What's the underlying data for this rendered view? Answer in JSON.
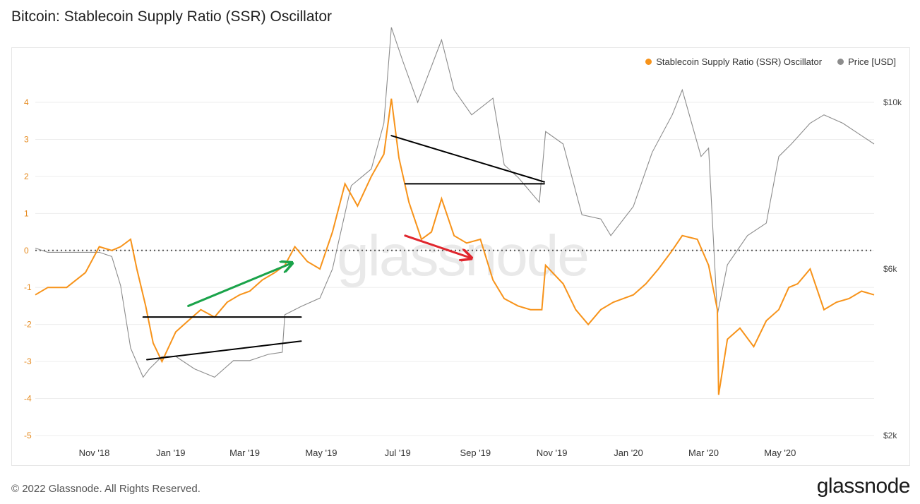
{
  "title": "Bitcoin: Stablecoin Supply Ratio (SSR) Oscillator",
  "footer": {
    "copyright": "© 2022 Glassnode. All Rights Reserved.",
    "logo_text": "glassnode"
  },
  "watermark": "glassnode",
  "colors": {
    "ssr": "#f7931a",
    "price": "#8c8c8c",
    "zero_line": "#555555",
    "annot_green": "#1aa34a",
    "annot_red": "#e0262e",
    "annot_black": "#000000"
  },
  "chart_data": {
    "type": "line",
    "legend": [
      "Stablecoin Supply Ratio (SSR) Oscillator",
      "Price [USD]"
    ],
    "legend_position": "top-right",
    "x_ticks": [
      "Nov '18",
      "Jan '19",
      "Mar '19",
      "May '19",
      "Jul '19",
      "Sep '19",
      "Nov '19",
      "Jan '20",
      "Mar '20",
      "May '20"
    ],
    "x_range": [
      "2018-09-15",
      "2020-07-15"
    ],
    "y_left_ticks": [
      "4",
      "3",
      "2",
      "1",
      "0",
      "-1",
      "-2",
      "-3",
      "-4",
      "-5"
    ],
    "y_left_range": [
      -5,
      4
    ],
    "y_right_ticks": [
      "$10k",
      "$6k",
      "$2k"
    ],
    "y_right_range": [
      2000,
      10000
    ],
    "grid": true,
    "series": [
      {
        "name": "Stablecoin Supply Ratio (SSR) Oscillator",
        "axis": "left",
        "x": [
          "2018-09-15",
          "2018-09-25",
          "2018-10-10",
          "2018-10-25",
          "2018-11-05",
          "2018-11-15",
          "2018-11-22",
          "2018-11-30",
          "2018-12-05",
          "2018-12-12",
          "2018-12-18",
          "2018-12-25",
          "2019-01-05",
          "2019-01-15",
          "2019-01-25",
          "2019-02-05",
          "2019-02-15",
          "2019-02-25",
          "2019-03-05",
          "2019-03-15",
          "2019-03-25",
          "2019-04-02",
          "2019-04-10",
          "2019-04-20",
          "2019-04-30",
          "2019-05-10",
          "2019-05-20",
          "2019-05-30",
          "2019-06-10",
          "2019-06-20",
          "2019-06-26",
          "2019-07-02",
          "2019-07-10",
          "2019-07-20",
          "2019-07-28",
          "2019-08-05",
          "2019-08-15",
          "2019-08-25",
          "2019-09-05",
          "2019-09-15",
          "2019-09-24",
          "2019-10-05",
          "2019-10-15",
          "2019-10-24",
          "2019-10-27",
          "2019-11-10",
          "2019-11-20",
          "2019-11-30",
          "2019-12-10",
          "2019-12-20",
          "2020-01-05",
          "2020-01-15",
          "2020-01-25",
          "2020-02-05",
          "2020-02-13",
          "2020-02-25",
          "2020-03-05",
          "2020-03-12",
          "2020-03-13",
          "2020-03-20",
          "2020-03-30",
          "2020-04-10",
          "2020-04-20",
          "2020-04-30",
          "2020-05-08",
          "2020-05-15",
          "2020-05-25",
          "2020-06-05",
          "2020-06-15",
          "2020-06-25",
          "2020-07-05",
          "2020-07-15"
        ],
        "values": [
          -1.2,
          -1.0,
          -1.0,
          -0.6,
          0.1,
          0.0,
          0.1,
          0.3,
          -0.5,
          -1.5,
          -2.5,
          -3.0,
          -2.2,
          -1.9,
          -1.6,
          -1.8,
          -1.4,
          -1.2,
          -1.1,
          -0.8,
          -0.6,
          -0.4,
          0.1,
          -0.3,
          -0.5,
          0.5,
          1.8,
          1.2,
          2.0,
          2.6,
          4.1,
          2.5,
          1.3,
          0.3,
          0.5,
          1.4,
          0.4,
          0.2,
          0.3,
          -0.8,
          -1.3,
          -1.5,
          -1.6,
          -1.6,
          -0.4,
          -0.9,
          -1.6,
          -2.0,
          -1.6,
          -1.4,
          -1.2,
          -0.9,
          -0.5,
          0.0,
          0.4,
          0.3,
          -0.4,
          -1.6,
          -3.9,
          -2.4,
          -2.1,
          -2.6,
          -1.9,
          -1.6,
          -1.0,
          -0.9,
          -0.5,
          -1.6,
          -1.4,
          -1.3,
          -1.1,
          -1.2
        ]
      },
      {
        "name": "Price [USD]",
        "axis": "right",
        "x": [
          "2018-09-15",
          "2018-09-25",
          "2018-10-10",
          "2018-10-25",
          "2018-11-05",
          "2018-11-15",
          "2018-11-22",
          "2018-11-30",
          "2018-12-10",
          "2018-12-15",
          "2018-12-25",
          "2019-01-05",
          "2019-01-20",
          "2019-02-05",
          "2019-02-20",
          "2019-03-05",
          "2019-03-20",
          "2019-03-31",
          "2019-04-02",
          "2019-04-15",
          "2019-04-30",
          "2019-05-10",
          "2019-05-25",
          "2019-06-10",
          "2019-06-20",
          "2019-06-26",
          "2019-07-05",
          "2019-07-17",
          "2019-08-05",
          "2019-08-15",
          "2019-08-29",
          "2019-09-15",
          "2019-09-24",
          "2019-10-05",
          "2019-10-22",
          "2019-10-27",
          "2019-11-10",
          "2019-11-25",
          "2019-12-10",
          "2019-12-18",
          "2020-01-05",
          "2020-01-20",
          "2020-02-05",
          "2020-02-13",
          "2020-02-28",
          "2020-03-05",
          "2020-03-12",
          "2020-03-20",
          "2020-04-05",
          "2020-04-20",
          "2020-04-30",
          "2020-05-10",
          "2020-05-25",
          "2020-06-05",
          "2020-06-20",
          "2020-07-05",
          "2020-07-15"
        ],
        "values": [
          6500,
          6400,
          6400,
          6400,
          6400,
          6300,
          5600,
          4100,
          3400,
          3600,
          3900,
          3900,
          3600,
          3400,
          3800,
          3800,
          3950,
          4000,
          4900,
          5100,
          5300,
          6000,
          8000,
          8400,
          9500,
          11800,
          11000,
          10000,
          11500,
          10300,
          9700,
          10100,
          8500,
          8200,
          7600,
          9300,
          9000,
          7300,
          7200,
          6800,
          7500,
          8800,
          9700,
          10300,
          8700,
          8900,
          4900,
          6100,
          6800,
          7100,
          8700,
          9000,
          9500,
          9700,
          9500,
          9200,
          9000
        ]
      }
    ],
    "annotations": [
      {
        "type": "line",
        "color": "black",
        "x": [
          "2018-12-10",
          "2019-04-15"
        ],
        "y": [
          -1.8,
          -1.8
        ]
      },
      {
        "type": "line",
        "color": "black",
        "x": [
          "2018-12-13",
          "2019-04-15"
        ],
        "y": [
          -2.95,
          -2.45
        ]
      },
      {
        "type": "line",
        "color": "black",
        "x": [
          "2019-06-26",
          "2019-10-26"
        ],
        "y": [
          3.1,
          1.85
        ]
      },
      {
        "type": "line",
        "color": "black",
        "x": [
          "2019-07-07",
          "2019-10-26"
        ],
        "y": [
          1.8,
          1.8
        ]
      },
      {
        "type": "arrow",
        "color": "green",
        "x": [
          "2019-01-15",
          "2019-04-07"
        ],
        "y": [
          -1.5,
          -0.35
        ]
      },
      {
        "type": "arrow",
        "color": "red",
        "x": [
          "2019-07-07",
          "2019-08-28"
        ],
        "y": [
          0.4,
          -0.2
        ]
      }
    ]
  }
}
